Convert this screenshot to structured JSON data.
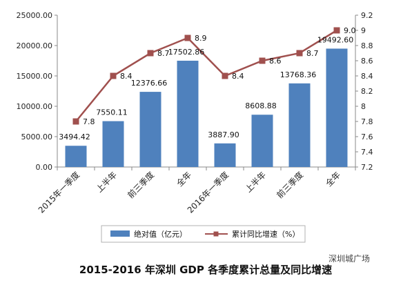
{
  "chart_data": {
    "type": "bar",
    "title": "2015-2016 年深圳 GDP 各季度累计总量及同比增速",
    "categories": [
      "2015年一季度",
      "上半年",
      "前三季度",
      "全年",
      "2016年一季度",
      "上半年",
      "前三季度",
      "全年"
    ],
    "series": [
      {
        "name": "绝对值（亿元）",
        "type": "bar",
        "axis": "left",
        "color": "#4f81bd",
        "values": [
          3494.42,
          7550.11,
          12376.66,
          17502.86,
          3887.9,
          8608.88,
          13768.36,
          19492.6
        ],
        "labels": [
          "3494.42",
          "7550.11",
          "12376.66",
          "17502.86",
          "3887.90",
          "8608.88",
          "13768.36",
          "19492.60"
        ]
      },
      {
        "name": "累计同比增速（%）",
        "type": "line",
        "axis": "right",
        "color": "#a0504e",
        "values": [
          7.8,
          8.4,
          8.7,
          8.9,
          8.4,
          8.6,
          8.7,
          9.0
        ],
        "labels": [
          "7.8",
          "8.4",
          "8.7",
          "8.9",
          "8.4",
          "8.6",
          "8.7",
          "9.0"
        ]
      }
    ],
    "y_left": {
      "min": 0,
      "max": 25000,
      "ticks": [
        "0.00",
        "5000.00",
        "10000.00",
        "15000.00",
        "20000.00",
        "25000.00"
      ]
    },
    "y_right": {
      "min": 7.2,
      "max": 9.2,
      "ticks": [
        "7.2",
        "7.4",
        "7.6",
        "7.8",
        "8",
        "8.2",
        "8.4",
        "8.6",
        "8.8",
        "9",
        "9.2"
      ]
    },
    "legend_position": "bottom",
    "grid": false,
    "watermark": "深圳城广场"
  }
}
